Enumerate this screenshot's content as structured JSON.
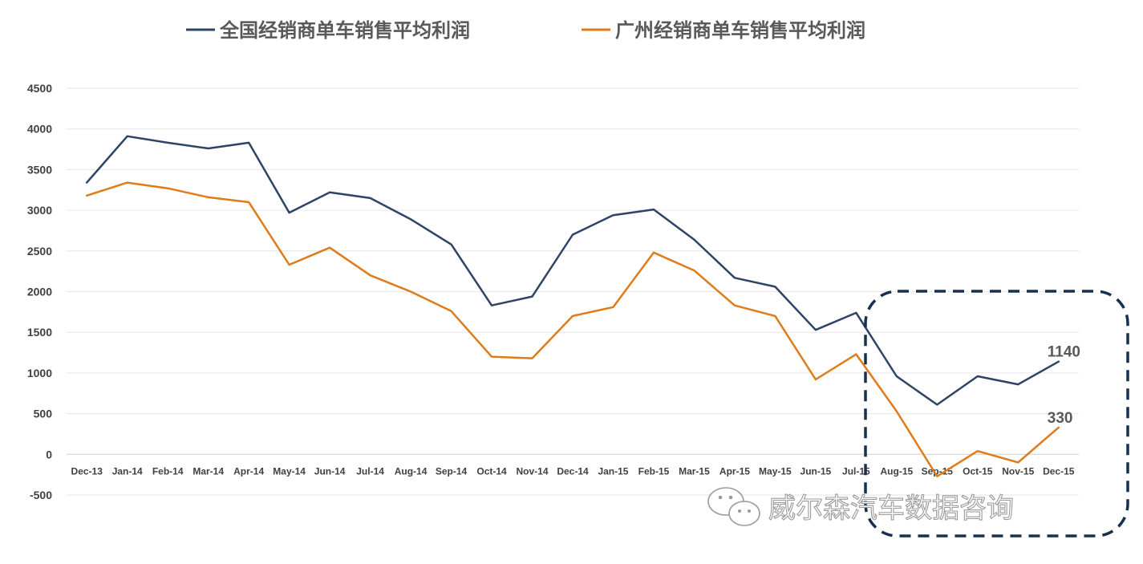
{
  "chart_data": {
    "type": "line",
    "x": [
      "Dec-13",
      "Jan-14",
      "Feb-14",
      "Mar-14",
      "Apr-14",
      "May-14",
      "Jun-14",
      "Jul-14",
      "Aug-14",
      "Sep-14",
      "Oct-14",
      "Nov-14",
      "Dec-14",
      "Jan-15",
      "Feb-15",
      "Mar-15",
      "Apr-15",
      "May-15",
      "Jun-15",
      "Jul-15",
      "Aug-15",
      "Sep-15",
      "Oct-15",
      "Nov-15",
      "Dec-15"
    ],
    "series": [
      {
        "name": "全国经销商单车销售平均利润",
        "color": "#2e4466",
        "values": [
          3340,
          3910,
          3830,
          3760,
          3830,
          2970,
          3220,
          3150,
          2890,
          2580,
          1830,
          1940,
          2700,
          2940,
          3010,
          2640,
          2170,
          2060,
          1530,
          1740,
          960,
          610,
          960,
          860,
          1140
        ]
      },
      {
        "name": "广州经销商单车销售平均利润",
        "color": "#e07b1a",
        "values": [
          3180,
          3340,
          3270,
          3160,
          3100,
          2330,
          2540,
          2200,
          2000,
          1760,
          1200,
          1180,
          1700,
          1810,
          2480,
          2260,
          1830,
          1700,
          920,
          1230,
          530,
          -270,
          40,
          -100,
          330
        ]
      }
    ],
    "ylim": [
      -500,
      4500
    ],
    "yticks": [
      "4500",
      "4000",
      "3500",
      "3000",
      "2500",
      "2000",
      "1500",
      "1000",
      "500",
      "0",
      "-500"
    ],
    "grid": true,
    "legend_position": "top",
    "data_labels": [
      {
        "series": 0,
        "index": 24,
        "text": "1140"
      },
      {
        "series": 1,
        "index": 24,
        "text": "330"
      }
    ],
    "highlight": {
      "from_index": 20,
      "to_index": 24,
      "style": "dashed-rounded-box",
      "color": "#17304f"
    }
  },
  "watermark": {
    "text": "威尔森汽车数据咨询",
    "icon": "wechat-icon"
  }
}
